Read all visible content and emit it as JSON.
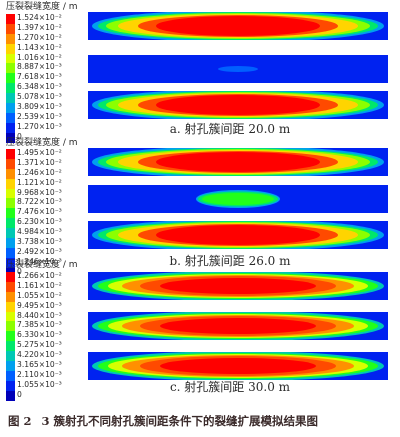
{
  "legend_title": "压裂裂缝宽度 / m",
  "colors": [
    "#ff0000",
    "#ff4a00",
    "#ff9000",
    "#ffd400",
    "#d8ff00",
    "#8cff00",
    "#22ff1a",
    "#00e86a",
    "#00c8b4",
    "#00a0ee",
    "#0060ff",
    "#0022f0",
    "#0000b8"
  ],
  "panels": [
    {
      "ticks": [
        "1.524×10⁻²",
        "1.397×10⁻²",
        "1.270×10⁻²",
        "1.143×10⁻²",
        "1.016×10⁻²",
        "8.887×10⁻³",
        "7.618×10⁻³",
        "6.348×10⁻³",
        "5.078×10⁻³",
        "3.809×10⁻³",
        "2.539×10⁻³",
        "1.270×10⁻³",
        "0"
      ],
      "caption": "a. 射孔簇间距 20.0 m"
    },
    {
      "ticks": [
        "1.495×10⁻²",
        "1.371×10⁻²",
        "1.246×10⁻²",
        "1.121×10⁻²",
        "9.968×10⁻³",
        "8.722×10⁻³",
        "7.476×10⁻³",
        "6.230×10⁻³",
        "4.984×10⁻³",
        "3.738×10⁻³",
        "2.492×10⁻³",
        "1.246×10⁻³",
        "0"
      ],
      "caption": "b. 射孔簇间距 26.0 m"
    },
    {
      "ticks": [
        "1.266×10⁻²",
        "1.161×10⁻²",
        "1.055×10⁻²",
        "9.495×10⁻³",
        "8.440×10⁻³",
        "7.385×10⁻³",
        "6.330×10⁻³",
        "5.275×10⁻³",
        "4.220×10⁻³",
        "3.165×10⁻³",
        "2.110×10⁻³",
        "1.055×10⁻³",
        "0"
      ],
      "caption": "c. 射孔簇间距 30.0 m"
    }
  ],
  "figure_caption": {
    "number": "图 2",
    "text": "3 簇射孔不同射孔簇间距条件下的裂缝扩展模拟结果图"
  }
}
